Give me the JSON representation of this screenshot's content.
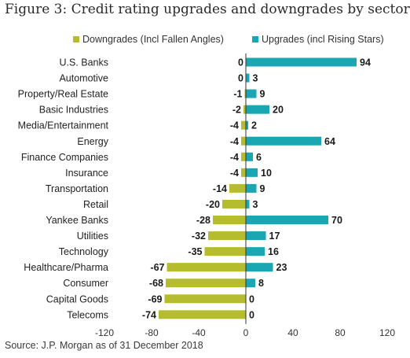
{
  "title": "Figure 3: Credit rating upgrades and downgrades by sector",
  "source": "Source: J.P. Morgan as of 31 December 2018",
  "colors": {
    "downgrades": "#b5bd2e",
    "upgrades": "#1aa6b3",
    "zero_line": "#333333"
  },
  "chart_data": {
    "type": "bar",
    "orientation": "horizontal",
    "categories": [
      "U.S. Banks",
      "Automotive",
      "Property/Real Estate",
      "Basic Industries",
      "Media/Entertainment",
      "Energy",
      "Finance Companies",
      "Insurance",
      "Transportation",
      "Retail",
      "Yankee Banks",
      "Utilities",
      "Technology",
      "Healthcare/Pharma",
      "Consumer",
      "Capital Goods",
      "Telecoms"
    ],
    "series": [
      {
        "name": "Downgrades (Incl Fallen Angles)",
        "values": [
          0,
          0,
          -1,
          -2,
          -4,
          -4,
          -4,
          -4,
          -14,
          -20,
          -28,
          -32,
          -35,
          -67,
          -68,
          -69,
          -74
        ]
      },
      {
        "name": "Upgrades (incl Rising Stars)",
        "values": [
          94,
          3,
          9,
          20,
          2,
          64,
          6,
          10,
          9,
          3,
          70,
          17,
          16,
          23,
          8,
          0,
          0
        ]
      }
    ],
    "xlim": [
      -120,
      120
    ],
    "xticks": [
      -120,
      -80,
      -40,
      0,
      40,
      80,
      120
    ],
    "xtick_labels": [
      "-120",
      "-80",
      "-40",
      "0",
      "40",
      "80",
      "120"
    ],
    "grid": false,
    "legend_position": "top"
  }
}
